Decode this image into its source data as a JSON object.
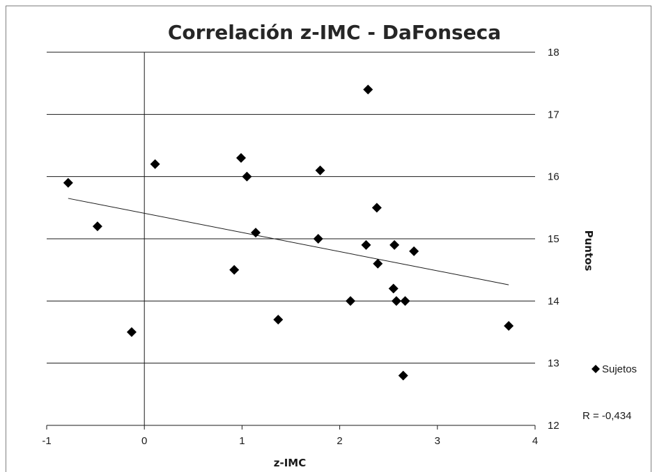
{
  "chart_data": {
    "type": "scatter",
    "title": "Correlación z-IMC - DaFonseca",
    "xlabel": "z-IMC",
    "ylabel": "Puntos",
    "xlim": [
      -1,
      4
    ],
    "ylim": [
      12,
      18
    ],
    "x_ticks": [
      "-1",
      "0",
      "1",
      "2",
      "3",
      "4"
    ],
    "y_ticks": [
      "12",
      "13",
      "14",
      "15",
      "16",
      "17",
      "18"
    ],
    "grid": "horizontal",
    "legend_position": "right",
    "series": [
      {
        "name": "Sujetos",
        "marker": "diamond",
        "color": "#000000",
        "points": [
          {
            "x": -0.78,
            "y": 15.9
          },
          {
            "x": -0.48,
            "y": 15.2
          },
          {
            "x": -0.13,
            "y": 13.5
          },
          {
            "x": 0.11,
            "y": 16.2
          },
          {
            "x": 0.92,
            "y": 14.5
          },
          {
            "x": 0.99,
            "y": 16.3
          },
          {
            "x": 1.05,
            "y": 16.0
          },
          {
            "x": 1.14,
            "y": 15.1
          },
          {
            "x": 1.37,
            "y": 13.7
          },
          {
            "x": 1.78,
            "y": 15.0
          },
          {
            "x": 1.8,
            "y": 16.1
          },
          {
            "x": 2.11,
            "y": 14.0
          },
          {
            "x": 2.27,
            "y": 14.9
          },
          {
            "x": 2.29,
            "y": 17.4
          },
          {
            "x": 2.38,
            "y": 15.5
          },
          {
            "x": 2.39,
            "y": 14.6
          },
          {
            "x": 2.55,
            "y": 14.2
          },
          {
            "x": 2.56,
            "y": 14.9
          },
          {
            "x": 2.58,
            "y": 14.0
          },
          {
            "x": 2.65,
            "y": 12.8
          },
          {
            "x": 2.67,
            "y": 14.0
          },
          {
            "x": 2.76,
            "y": 14.8
          },
          {
            "x": 3.73,
            "y": 13.6
          }
        ]
      }
    ],
    "trendline": {
      "x": [
        -0.78,
        3.73
      ],
      "y": [
        15.65,
        14.26
      ],
      "color": "#000000"
    },
    "annotation": "R = -0,434"
  }
}
